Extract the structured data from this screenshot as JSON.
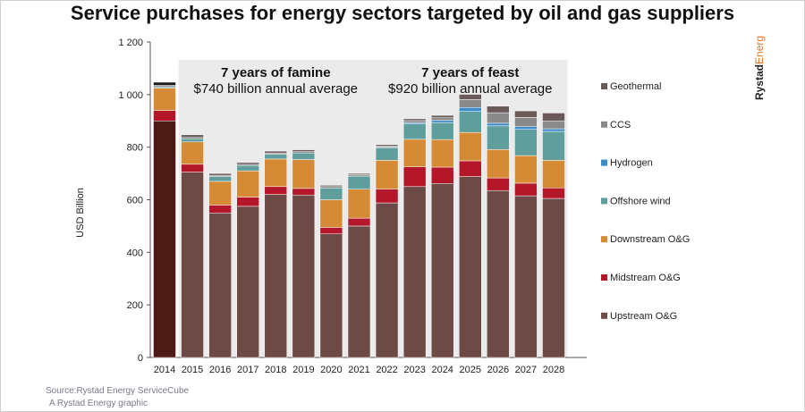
{
  "chart_data": {
    "type": "bar",
    "stacked": true,
    "title": "Service purchases for energy sectors targeted by oil and gas suppliers",
    "ylabel": "USD Billion",
    "xlabel": "",
    "ylim": [
      0,
      1200
    ],
    "yticks": [
      0,
      200,
      400,
      600,
      800,
      1000,
      1200
    ],
    "ytick_labels": [
      "0",
      "200",
      "400",
      "600",
      "800",
      "1 000",
      "1 200"
    ],
    "grid": false,
    "legend_position": "right",
    "categories": [
      "2014",
      "2015",
      "2016",
      "2017",
      "2018",
      "2019",
      "2020",
      "2021",
      "2022",
      "2023",
      "2024",
      "2025",
      "2026",
      "2027",
      "2028"
    ],
    "series": [
      {
        "name": "Upstream O&G",
        "color": "#6e4a47",
        "values": [
          900,
          705,
          550,
          575,
          620,
          618,
          470,
          500,
          588,
          650,
          662,
          688,
          635,
          615,
          605
        ]
      },
      {
        "name": "Midstream O&G",
        "color": "#b5172a",
        "values": [
          40,
          30,
          30,
          35,
          30,
          25,
          25,
          30,
          52,
          75,
          62,
          60,
          48,
          48,
          40
        ]
      },
      {
        "name": "Downstream O&G",
        "color": "#d58a35",
        "values": [
          85,
          85,
          90,
          100,
          105,
          110,
          105,
          110,
          110,
          105,
          105,
          108,
          108,
          105,
          105
        ]
      },
      {
        "name": "Offshore wind",
        "color": "#5f9e9c",
        "values": [
          5,
          12,
          18,
          20,
          18,
          25,
          45,
          50,
          48,
          58,
          65,
          80,
          90,
          100,
          110
        ]
      },
      {
        "name": "Hydrogen",
        "color": "#3d8cc9",
        "values": [
          0,
          0,
          0,
          0,
          0,
          0,
          0,
          0,
          2,
          5,
          8,
          15,
          10,
          10,
          10
        ]
      },
      {
        "name": "CCS",
        "color": "#8a8a8a",
        "values": [
          5,
          5,
          5,
          5,
          5,
          5,
          5,
          5,
          5,
          8,
          10,
          30,
          40,
          35,
          30
        ]
      },
      {
        "name": "Geothermal",
        "color": "#6a5a5a",
        "values": [
          12,
          10,
          7,
          7,
          7,
          7,
          5,
          5,
          5,
          7,
          9,
          20,
          25,
          25,
          30
        ]
      }
    ],
    "first_bar_colors": [
      "#4e1a16",
      "#b5172a",
      "#d58a35",
      "#5f9e9c",
      "#3d8cc9",
      "#8a8a8a",
      "#1a1a1a"
    ],
    "annotations": [
      {
        "range": [
          "2015",
          "2021"
        ],
        "heading": "7 years of famine",
        "text": "$740 billion annual average"
      },
      {
        "range": [
          "2022",
          "2028"
        ],
        "heading": "7 years of feast",
        "text": "$920 billion annual average"
      }
    ],
    "annotation_band_color": "#ebebeb"
  },
  "brand": {
    "name": "Rystad",
    "name_accent": "Energy",
    "accent_color": "#e8722a"
  },
  "source": {
    "line1": "Source:Rystad Energy ServiceCube",
    "line2": "A Rystad Energy graphic"
  }
}
